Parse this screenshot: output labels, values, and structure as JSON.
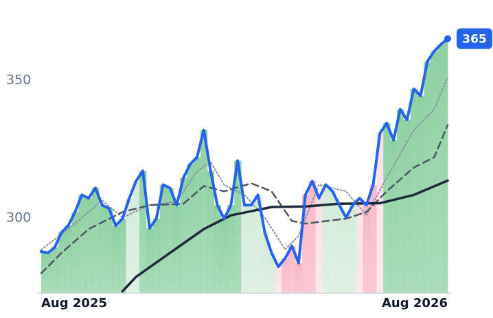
{
  "chart_data": {
    "type": "line",
    "xlim": [
      0,
      60
    ],
    "xticks": [
      {
        "value": 0,
        "label": "Aug 2025"
      },
      {
        "value": 60,
        "label": "Aug 2026"
      }
    ],
    "ylim": [
      273,
      379
    ],
    "yticks": [
      300,
      350
    ],
    "series": [
      {
        "color": "#2563eb",
        "style": "solid",
        "width": 4,
        "values": [
          287.9,
          287.4,
          289.4,
          294.8,
          297.3,
          302.2,
          308.4,
          307.2,
          310.9,
          304.7,
          303.5,
          297.3,
          299.8,
          307.2,
          313.4,
          317.1,
          296.3,
          299.8,
          312.1,
          310.9,
          304.7,
          314.6,
          319.6,
          322,
          331.9,
          317.1,
          304.7,
          299.8,
          304.7,
          320.8,
          304.7,
          304.7,
          308.4,
          294.8,
          287.4,
          282.4,
          285.4,
          289.9,
          283.7,
          308.4,
          313.4,
          307.2,
          312.1,
          309.7,
          304.7,
          300.2,
          304.7,
          307.2,
          304.7,
          312.1,
          330.7,
          334.4,
          328.2,
          339.4,
          335.6,
          346.8,
          344.3,
          356.7,
          360.4,
          362.9,
          365
        ]
      },
      {
        "color": "#8a94a6",
        "style": "dotted",
        "width": 2,
        "x": [
          0,
          4,
          9,
          12,
          16,
          20,
          23,
          25,
          27,
          30,
          33,
          36,
          38,
          41,
          45,
          48,
          51,
          55,
          58,
          60
        ],
        "values": [
          288.6,
          296,
          306.4,
          300.2,
          304.7,
          306,
          317,
          320.3,
          312.1,
          308.4,
          300.2,
          288.6,
          293.6,
          312.1,
          309.7,
          301,
          314.6,
          331.9,
          339.4,
          351
        ]
      },
      {
        "color": "#4b5563",
        "style": "dashed",
        "width": 2.5,
        "x": [
          0,
          3,
          7,
          12,
          16,
          21,
          24,
          27,
          31,
          34,
          37,
          39,
          45,
          48,
          51,
          55,
          58,
          60
        ],
        "values": [
          280,
          287.4,
          296,
          302.2,
          304.7,
          305.2,
          311.6,
          309.7,
          312.6,
          309.7,
          299,
          298,
          299.8,
          302.2,
          309.7,
          318.3,
          322,
          333.7
        ]
      },
      {
        "color": "#1e293b",
        "style": "solid",
        "width": 3.5,
        "x": [
          12,
          14,
          19,
          24,
          28,
          34,
          39,
          44,
          50,
          55,
          60
        ],
        "values": [
          273.5,
          278.7,
          287.4,
          296,
          301,
          304,
          304.2,
          305.2,
          305.4,
          308.4,
          313.6
        ]
      }
    ],
    "shading": [
      {
        "from": 0,
        "to": 12,
        "color": "#8fd1a3"
      },
      {
        "from": 13,
        "to": 14,
        "color": "#d4ecdc"
      },
      {
        "from": 15,
        "to": 29,
        "color": "#8fd1a3"
      },
      {
        "from": 30,
        "to": 34,
        "color": "#d4ecdc"
      },
      {
        "from": 35,
        "to": 35,
        "color": "#fde0e6"
      },
      {
        "from": 36,
        "to": 40,
        "color": "#f9b8c6"
      },
      {
        "from": 41,
        "to": 41,
        "color": "#fde0e6"
      },
      {
        "from": 42,
        "to": 46,
        "color": "#d4ecdc"
      },
      {
        "from": 47,
        "to": 47,
        "color": "#fde0e6"
      },
      {
        "from": 48,
        "to": 49,
        "color": "#f9b8c6"
      },
      {
        "from": 50,
        "to": 50,
        "color": "#fde0e6"
      },
      {
        "from": 51,
        "to": 60,
        "color": "#8fd1a3"
      }
    ]
  }
}
